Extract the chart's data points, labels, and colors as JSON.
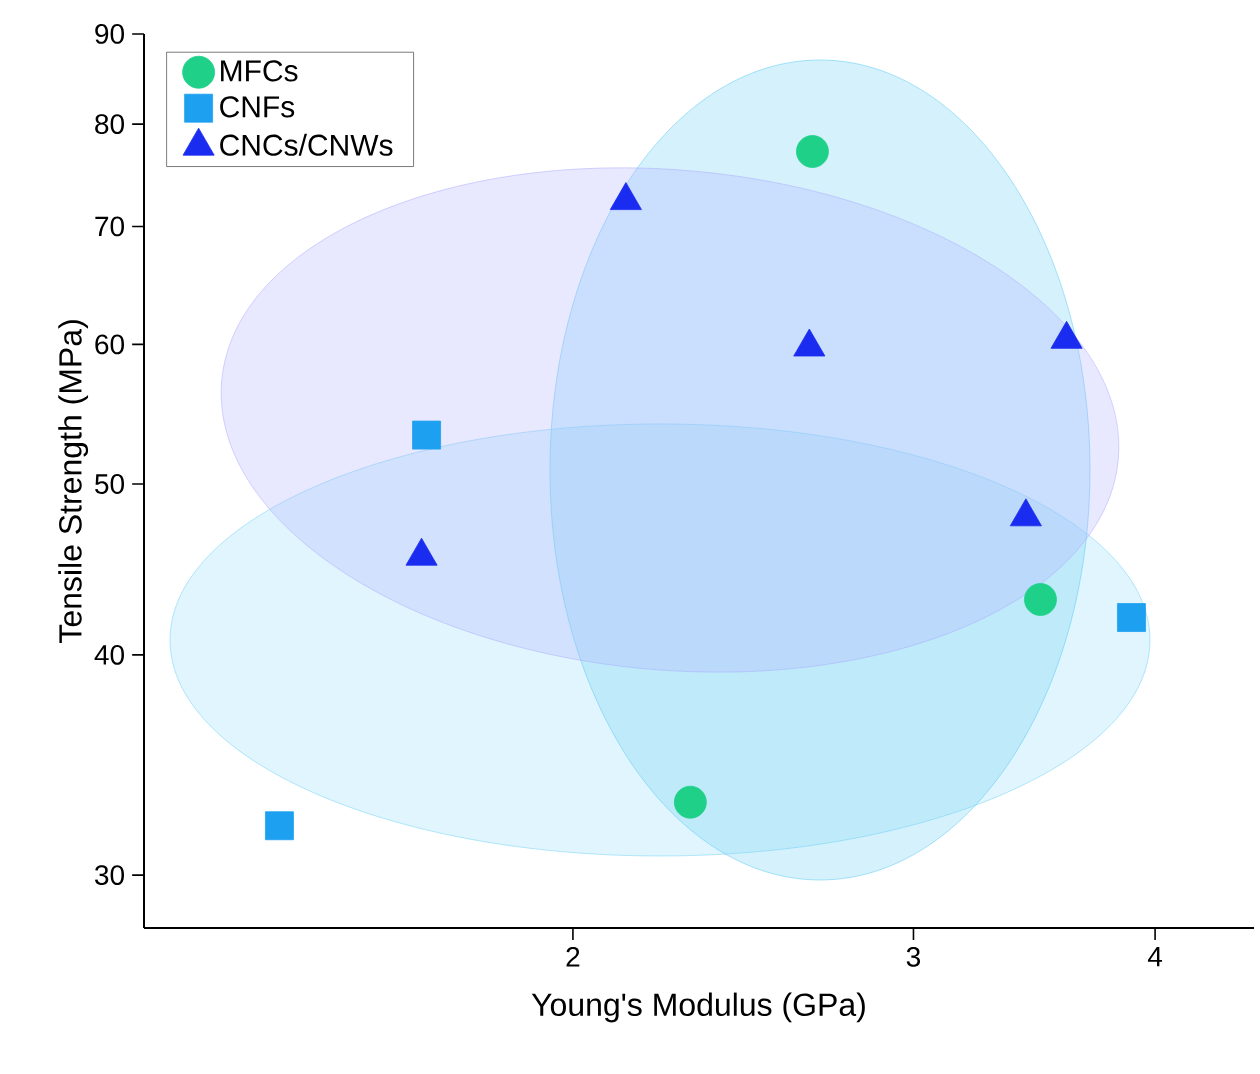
{
  "chart_data": {
    "type": "scatter",
    "xlabel": "Young's Modulus (GPa)",
    "ylabel": "Tensile Strength (MPa)",
    "log": "xy",
    "xlim": [
      1.2,
      4.5
    ],
    "ylim": [
      28,
      90
    ],
    "xticks": [
      2,
      3,
      4
    ],
    "yticks": [
      30,
      40,
      50,
      60,
      70,
      80,
      90
    ],
    "legend": "top left",
    "series": [
      {
        "name": "MFCs",
        "color": "#1ed088",
        "marker": "circle",
        "x": [
          2.66,
          2.3,
          3.49
        ],
        "values": [
          77.2,
          33.0,
          43.0
        ]
      },
      {
        "name": "CNFs",
        "color": "#1ea0f0",
        "marker": "square",
        "x": [
          1.68,
          1.41,
          3.89
        ],
        "values": [
          53.3,
          32.0,
          42.0
        ]
      },
      {
        "name": "CNCs/CNWs",
        "color": "#1a2cf0",
        "marker": "triangle",
        "x": [
          2.13,
          2.65,
          3.6,
          3.43,
          1.67
        ],
        "values": [
          72.4,
          59.8,
          60.4,
          47.9,
          45.5
        ]
      }
    ]
  }
}
